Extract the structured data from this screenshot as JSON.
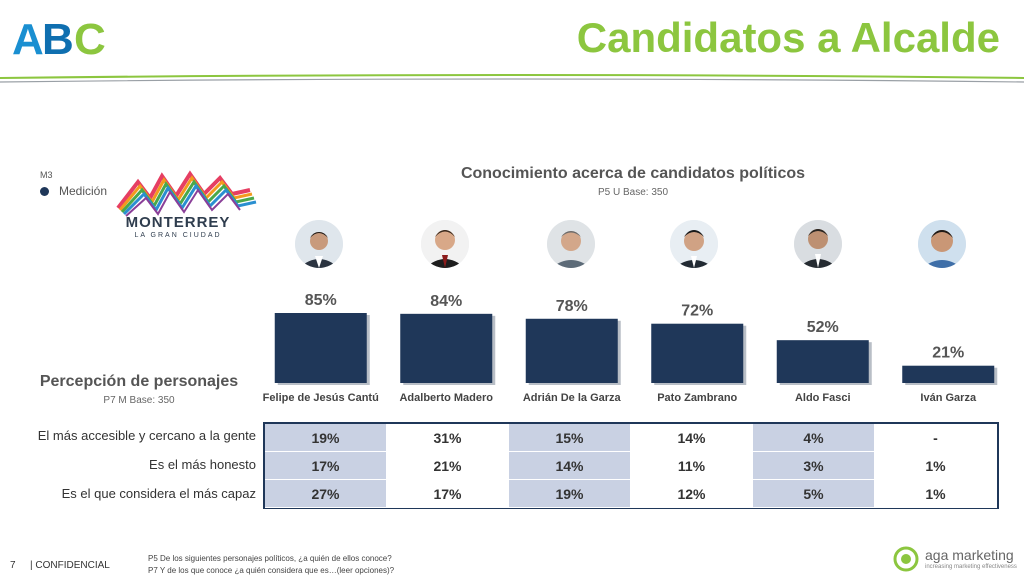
{
  "header": {
    "logo": "ABC",
    "title": "Candidatos a Alcalde"
  },
  "legend": {
    "code": "M3",
    "item": "Medición",
    "color": "#1f3759"
  },
  "client_logo": {
    "name": "MONTERREY",
    "tagline": "LA GRAN CIUDAD"
  },
  "chart_data": {
    "type": "bar",
    "title": "Conocimiento acerca de candidatos políticos",
    "subtitle": "P5 U Base: 350",
    "categories": [
      "Felipe de Jesús Cantú",
      "Adalberto Madero",
      "Adrián De la Garza",
      "Pato Zambrano",
      "Aldo Fasci",
      "Iván Garza"
    ],
    "series": [
      {
        "name": "Medición",
        "values": [
          85,
          84,
          78,
          72,
          52,
          21
        ]
      }
    ],
    "labels": [
      "85%",
      "84%",
      "78%",
      "72%",
      "52%",
      "21%"
    ],
    "ylim": [
      0,
      100
    ],
    "bar_color": "#1f3759",
    "grid": false,
    "legend_position": "top-left"
  },
  "perception": {
    "title": "Percepción de personajes",
    "base": "P7 M Base:  350",
    "rows": [
      {
        "label": "El más accesible y cercano a la gente",
        "values": [
          "19%",
          "31%",
          "15%",
          "14%",
          "4%",
          "-"
        ]
      },
      {
        "label": "Es el más honesto",
        "values": [
          "17%",
          "21%",
          "14%",
          "11%",
          "3%",
          "1%"
        ]
      },
      {
        "label": "Es el que considera el más capaz",
        "values": [
          "27%",
          "17%",
          "19%",
          "12%",
          "5%",
          "1%"
        ]
      }
    ]
  },
  "footer": {
    "page": "7",
    "confidential": "| CONFIDENCIAL",
    "note1": "P5 De los siguientes personajes políticos, ¿a quién de ellos conoce?",
    "note2": "P7 Y de los que conoce ¿a quién considera que es…(leer opciones)?",
    "brand": "aga marketing",
    "brand_tag": "increasing marketing effectiveness"
  },
  "colors": {
    "title_green": "#8cc63f",
    "navy": "#1f3759",
    "table_shade": "#c9d1e3"
  }
}
